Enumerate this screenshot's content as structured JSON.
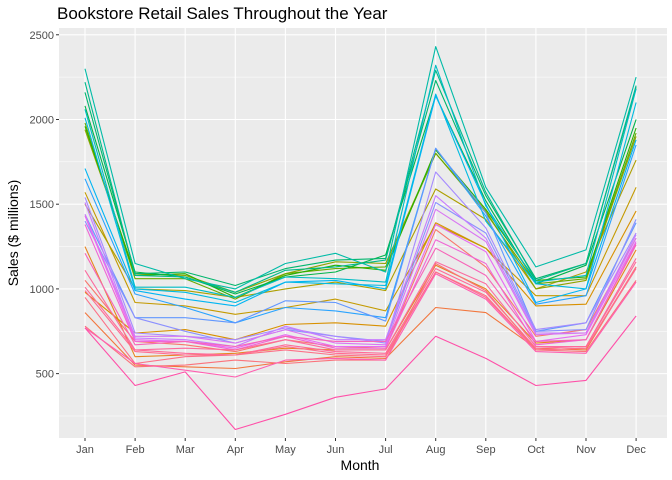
{
  "chart_data": {
    "type": "line",
    "title": "Bookstore Retail Sales Throughout the Year",
    "xlabel": "Month",
    "ylabel": "Sales ($ millions)",
    "categories": [
      "Jan",
      "Feb",
      "Mar",
      "Apr",
      "May",
      "Jun",
      "Jul",
      "Aug",
      "Sep",
      "Oct",
      "Nov",
      "Dec"
    ],
    "yticks": [
      500,
      1000,
      1500,
      2000,
      2500
    ],
    "ylim": [
      120,
      2540
    ],
    "grid": true,
    "legend": "none",
    "panel_color": "#ebebeb",
    "series": [
      {
        "color": "#f8766d",
        "values": [
          1050,
          690,
          670,
          630,
          700,
          660,
          650,
          1350,
          1130,
          720,
          760,
          1300
        ]
      },
      {
        "color": "#f2763d",
        "values": [
          860,
          550,
          540,
          530,
          570,
          600,
          590,
          890,
          860,
          650,
          640,
          1130
        ]
      },
      {
        "color": "#e7851e",
        "values": [
          1250,
          600,
          610,
          620,
          650,
          640,
          640,
          1140,
          1000,
          680,
          700,
          1230
        ]
      },
      {
        "color": "#d89000",
        "values": [
          980,
          740,
          760,
          700,
          790,
          800,
          780,
          1390,
          1240,
          900,
          910,
          1460
        ]
      },
      {
        "color": "#c49a00",
        "values": [
          1570,
          920,
          900,
          850,
          890,
          940,
          870,
          1380,
          1240,
          960,
          960,
          1600
        ]
      },
      {
        "color": "#ad9f00",
        "values": [
          1500,
          1000,
          990,
          950,
          1000,
          1040,
          990,
          1590,
          1410,
          1000,
          1100,
          1760
        ]
      },
      {
        "color": "#8fa400",
        "values": [
          1940,
          1090,
          1080,
          980,
          1090,
          1160,
          1150,
          1800,
          1460,
          1000,
          1050,
          1900
        ]
      },
      {
        "color": "#6aaa00",
        "values": [
          1980,
          1060,
          1060,
          940,
          1090,
          1120,
          1130,
          1800,
          1450,
          1030,
          1060,
          1920
        ]
      },
      {
        "color": "#2ab000",
        "values": [
          1960,
          1080,
          1090,
          950,
          1080,
          1140,
          1110,
          1820,
          1470,
          1050,
          1070,
          1950
        ]
      },
      {
        "color": "#00b34a",
        "values": [
          2080,
          1100,
          1070,
          970,
          1070,
          1100,
          1200,
          2140,
          1520,
          1030,
          1140,
          2000
        ]
      },
      {
        "color": "#00b66d",
        "values": [
          2160,
          1090,
          1100,
          1020,
          1120,
          1170,
          1180,
          2230,
          1550,
          1060,
          1150,
          2190
        ]
      },
      {
        "color": "#00b98a",
        "values": [
          2220,
          1080,
          1070,
          980,
          1110,
          1130,
          1170,
          2290,
          1570,
          1050,
          1150,
          2200
        ]
      },
      {
        "color": "#00bba7",
        "values": [
          2300,
          1150,
          1060,
          1000,
          1150,
          1210,
          1100,
          2430,
          1600,
          1130,
          1230,
          2250
        ]
      },
      {
        "color": "#00bcc4",
        "values": [
          2060,
          1010,
          1010,
          950,
          1070,
          1060,
          1040,
          2320,
          1490,
          1040,
          1080,
          2180
        ]
      },
      {
        "color": "#00bbe0",
        "values": [
          2010,
          1000,
          980,
          920,
          1040,
          1030,
          1020,
          2150,
          1400,
          1030,
          1000,
          2100
        ]
      },
      {
        "color": "#00b5f3",
        "values": [
          1710,
          990,
          940,
          900,
          1040,
          1050,
          1000,
          2140,
          1500,
          920,
          1000,
          1880
        ]
      },
      {
        "color": "#29a3ff",
        "values": [
          1650,
          970,
          890,
          800,
          890,
          870,
          830,
          1830,
          1430,
          910,
          960,
          1850
        ]
      },
      {
        "color": "#6197ff",
        "values": [
          1440,
          830,
          830,
          800,
          930,
          920,
          810,
          1830,
          1450,
          750,
          800,
          1390
        ]
      },
      {
        "color": "#8b90ff",
        "values": [
          1400,
          830,
          750,
          680,
          760,
          720,
          690,
          1510,
          1330,
          750,
          760,
          1410
        ]
      },
      {
        "color": "#a58aff",
        "values": [
          1540,
          740,
          720,
          700,
          770,
          720,
          680,
          1690,
          1360,
          760,
          800,
          1330
        ]
      },
      {
        "color": "#c77cff",
        "values": [
          1510,
          710,
          700,
          660,
          780,
          700,
          700,
          1550,
          1300,
          740,
          740,
          1320
        ]
      },
      {
        "color": "#d876f2",
        "values": [
          1440,
          720,
          720,
          680,
          760,
          680,
          670,
          1470,
          1280,
          730,
          740,
          1300
        ]
      },
      {
        "color": "#e76bf3",
        "values": [
          1430,
          700,
          690,
          650,
          730,
          660,
          660,
          1380,
          1220,
          690,
          730,
          1280
        ]
      },
      {
        "color": "#f066d6",
        "values": [
          1380,
          690,
          690,
          640,
          720,
          650,
          650,
          1290,
          1150,
          670,
          700,
          1270
        ]
      },
      {
        "color": "#f764b8",
        "values": [
          1210,
          670,
          690,
          660,
          720,
          690,
          690,
          1240,
          1080,
          690,
          700,
          1260
        ]
      },
      {
        "color": "#fc6b9e",
        "values": [
          1110,
          640,
          650,
          640,
          700,
          640,
          640,
          1160,
          1030,
          660,
          660,
          1180
        ]
      },
      {
        "color": "#ff6a98",
        "values": [
          1010,
          640,
          620,
          610,
          670,
          630,
          620,
          1120,
          980,
          650,
          660,
          1160
        ]
      },
      {
        "color": "#ff6c91",
        "values": [
          990,
          630,
          610,
          610,
          660,
          620,
          610,
          1100,
          950,
          640,
          650,
          1120
        ]
      },
      {
        "color": "#fd6f86",
        "values": [
          950,
          560,
          600,
          610,
          640,
          610,
          600,
          1100,
          960,
          640,
          650,
          1130
        ]
      },
      {
        "color": "#fb727b",
        "values": [
          780,
          540,
          550,
          580,
          560,
          580,
          580,
          1150,
          990,
          640,
          630,
          1050
        ]
      },
      {
        "color": "#ff5fb0",
        "values": [
          770,
          560,
          520,
          480,
          580,
          590,
          580,
          1090,
          940,
          630,
          620,
          1040
        ]
      },
      {
        "color": "#ff4fa8",
        "values": [
          770,
          430,
          510,
          170,
          260,
          360,
          410,
          720,
          590,
          430,
          460,
          840
        ]
      }
    ]
  }
}
